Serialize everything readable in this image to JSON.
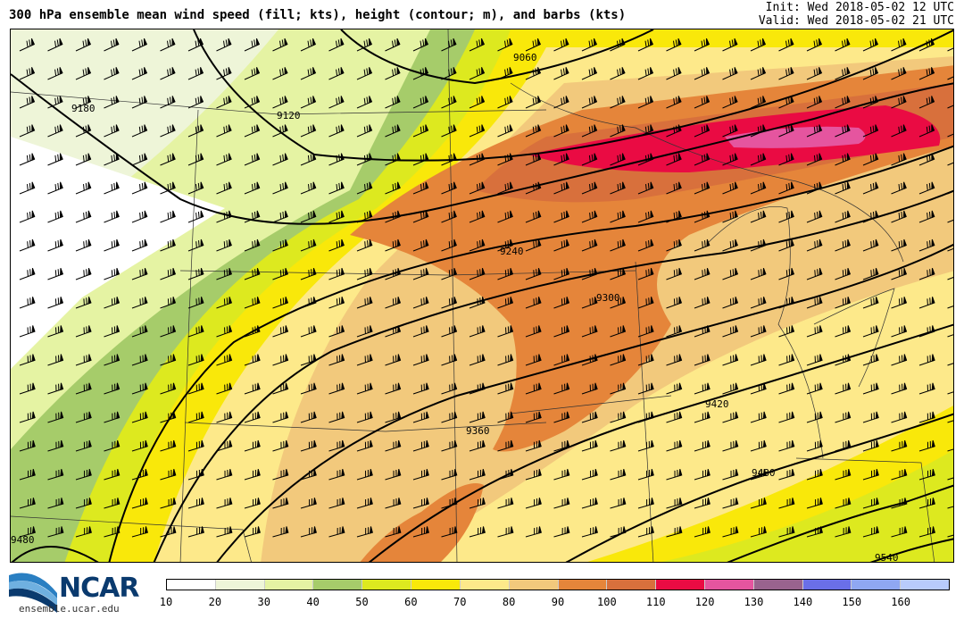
{
  "header": {
    "title": "300 hPa ensemble mean wind speed (fill; kts), height (contour; m), and barbs (kts)",
    "init": "Init: Wed 2018-05-02 12 UTC",
    "valid": "Valid: Wed 2018-05-02 21 UTC"
  },
  "logo": {
    "text": "NCAR",
    "site": "ensemble.ucar.edu"
  },
  "colorbar": {
    "ticks": [
      "10",
      "20",
      "30",
      "40",
      "50",
      "60",
      "70",
      "80",
      "90",
      "100",
      "110",
      "120",
      "130",
      "140",
      "150",
      "160"
    ],
    "colors": [
      "#ffffff",
      "#eef5d8",
      "#e5f3a3",
      "#a6cc6a",
      "#dde91f",
      "#f9e80a",
      "#fde98a",
      "#f2c97c",
      "#e5853a",
      "#d8703c",
      "#ea0b43",
      "#e5559f",
      "#99638e",
      "#6a6fe8",
      "#8fa7f2",
      "#b8cbfb"
    ]
  },
  "contours": {
    "unit": "m",
    "labels": [
      "9060",
      "9120",
      "9180",
      "9240",
      "9300",
      "9360",
      "9420",
      "9480",
      "9540",
      "9480"
    ]
  }
}
